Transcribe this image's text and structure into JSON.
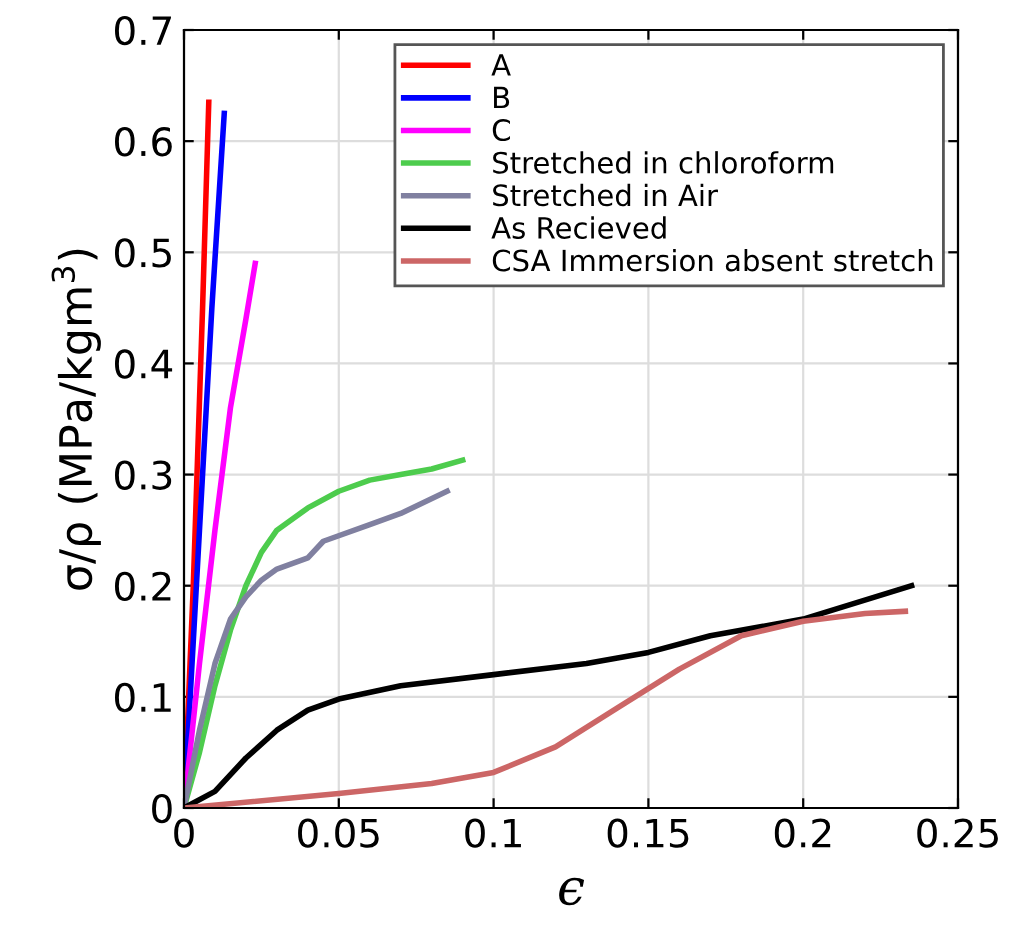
{
  "chart_data": {
    "type": "line",
    "xlabel": "ϵ",
    "ylabel": "σ/ρ (MPa/kgm$^{3}$)",
    "xlim": [
      0,
      0.25
    ],
    "ylim": [
      0,
      0.7
    ],
    "xticks": [
      0,
      0.05,
      0.1,
      0.15,
      0.2,
      0.25
    ],
    "yticks": [
      0,
      0.1,
      0.2,
      0.3,
      0.4,
      0.5,
      0.6,
      0.7
    ],
    "grid": true,
    "legend": "top right",
    "series": [
      {
        "name": "A",
        "color": "#ff0000",
        "x": [
          0,
          0.003,
          0.006,
          0.008
        ],
        "values": [
          0,
          0.2,
          0.45,
          0.635
        ]
      },
      {
        "name": "B",
        "color": "#0000ff",
        "x": [
          0,
          0.005,
          0.009,
          0.013
        ],
        "values": [
          0,
          0.25,
          0.45,
          0.625
        ]
      },
      {
        "name": "C",
        "color": "#ff00ff",
        "x": [
          0,
          0.005,
          0.01,
          0.015,
          0.02,
          0.023
        ],
        "values": [
          0,
          0.13,
          0.25,
          0.36,
          0.44,
          0.49
        ]
      },
      {
        "name": "Stretched in chloroform",
        "color": "#4dcc4d",
        "x": [
          0,
          0.005,
          0.01,
          0.015,
          0.02,
          0.025,
          0.03,
          0.04,
          0.05,
          0.06,
          0.07,
          0.08,
          0.09
        ],
        "values": [
          0,
          0.05,
          0.11,
          0.16,
          0.2,
          0.23,
          0.25,
          0.27,
          0.285,
          0.295,
          0.3,
          0.305,
          0.313
        ]
      },
      {
        "name": "Stretched in Air",
        "color": "#8080a0",
        "x": [
          0,
          0.005,
          0.01,
          0.015,
          0.02,
          0.025,
          0.03,
          0.04,
          0.045,
          0.06,
          0.07,
          0.085
        ],
        "values": [
          0,
          0.07,
          0.13,
          0.17,
          0.19,
          0.205,
          0.215,
          0.225,
          0.24,
          0.255,
          0.265,
          0.285
        ]
      },
      {
        "name": "As Recieved",
        "color": "#000000",
        "x": [
          0,
          0.01,
          0.02,
          0.03,
          0.04,
          0.05,
          0.07,
          0.1,
          0.13,
          0.15,
          0.17,
          0.2,
          0.235
        ],
        "values": [
          0,
          0.015,
          0.045,
          0.07,
          0.088,
          0.098,
          0.11,
          0.12,
          0.13,
          0.14,
          0.155,
          0.17,
          0.2
        ]
      },
      {
        "name": "CSA Immersion absent stretch",
        "color": "#cc6666",
        "x": [
          0,
          0.05,
          0.08,
          0.1,
          0.12,
          0.14,
          0.16,
          0.18,
          0.2,
          0.22,
          0.233
        ],
        "values": [
          0,
          0.013,
          0.022,
          0.032,
          0.055,
          0.09,
          0.125,
          0.155,
          0.168,
          0.175,
          0.177
        ]
      }
    ]
  }
}
